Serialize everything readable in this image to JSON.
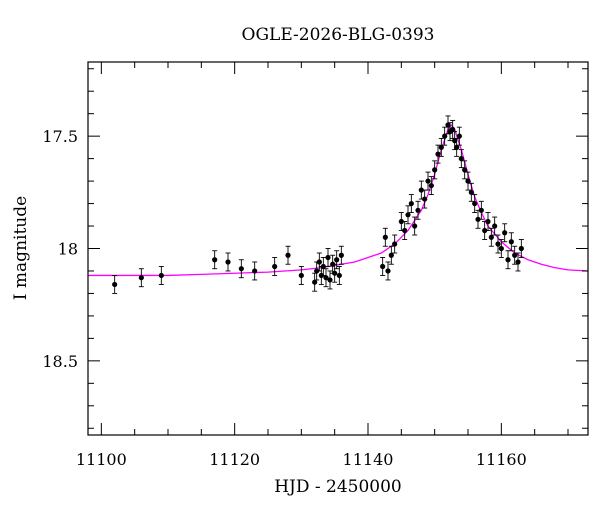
{
  "chart_data": {
    "type": "scatter",
    "title": "OGLE-2026-BLG-0393",
    "xlabel": "HJD - 2450000",
    "ylabel": "I magnitude",
    "xlim": [
      11098,
      11173
    ],
    "ylim": [
      18.83,
      17.17
    ],
    "y_inverted": true,
    "grid": false,
    "x_ticks": [
      11100,
      11120,
      11140,
      11160
    ],
    "x_tick_labels": [
      "11100",
      "11120",
      "11140",
      "11160"
    ],
    "y_ticks": [
      17.5,
      18,
      18.5
    ],
    "y_tick_labels": [
      "17.5",
      "18",
      "18.5"
    ],
    "colors": {
      "points": "#000000",
      "model": "#ff00ff"
    },
    "model": {
      "name": "",
      "x": [
        11098,
        11105,
        11110,
        11115,
        11120,
        11125,
        11130,
        11133,
        11136,
        11138,
        11140,
        11142,
        11144,
        11146,
        11148,
        11149,
        11150,
        11151,
        11152,
        11152.5,
        11153,
        11154,
        11155,
        11156,
        11157,
        11158,
        11160,
        11162,
        11164,
        11166,
        11168,
        11170,
        11173
      ],
      "y": [
        18.12,
        18.12,
        18.12,
        18.115,
        18.11,
        18.105,
        18.095,
        18.085,
        18.07,
        18.06,
        18.04,
        18.02,
        17.98,
        17.92,
        17.83,
        17.76,
        17.67,
        17.56,
        17.47,
        17.45,
        17.47,
        17.56,
        17.67,
        17.77,
        17.84,
        17.9,
        17.97,
        18.02,
        18.05,
        18.07,
        18.085,
        18.095,
        18.1
      ]
    },
    "series": [
      {
        "name": "",
        "x": [
          11102,
          11106,
          11109,
          11117,
          11119,
          11121,
          11123,
          11126,
          11128,
          11130,
          11132,
          11132.3,
          11132.7,
          11133,
          11133.3,
          11133.7,
          11134,
          11134.3,
          11134.7,
          11135,
          11135.3,
          11135.7,
          11136,
          11142.2,
          11142.6,
          11143,
          11143.5,
          11144,
          11145,
          11145.5,
          11146,
          11146.5,
          11147,
          11147.5,
          11148,
          11148.5,
          11149,
          11149.5,
          11150,
          11150.5,
          11151,
          11151.5,
          11152,
          11152.3,
          11152.7,
          11153,
          11153.3,
          11153.7,
          11154,
          11154.5,
          11155,
          11155.5,
          11156,
          11156.5,
          11157,
          11157.5,
          11158,
          11158.5,
          11159,
          11159.5,
          11160,
          11160.5,
          11161,
          11161.5,
          11162,
          11162.5,
          11163
        ],
        "y": [
          18.16,
          18.13,
          18.12,
          18.05,
          18.06,
          18.09,
          18.1,
          18.08,
          18.03,
          18.12,
          18.15,
          18.1,
          18.06,
          18.12,
          18.08,
          18.13,
          18.04,
          18.14,
          18.07,
          18.11,
          18.05,
          18.12,
          18.03,
          18.08,
          17.95,
          18.1,
          18.03,
          17.98,
          17.88,
          17.92,
          17.85,
          17.8,
          17.9,
          17.83,
          17.74,
          17.78,
          17.7,
          17.72,
          17.65,
          17.58,
          17.55,
          17.5,
          17.45,
          17.48,
          17.47,
          17.52,
          17.55,
          17.5,
          17.6,
          17.65,
          17.7,
          17.75,
          17.8,
          17.87,
          17.83,
          17.92,
          17.88,
          17.95,
          17.9,
          17.98,
          18.0,
          17.93,
          18.05,
          17.97,
          18.03,
          18.06,
          18.0
        ],
        "err": 0.04
      }
    ]
  }
}
